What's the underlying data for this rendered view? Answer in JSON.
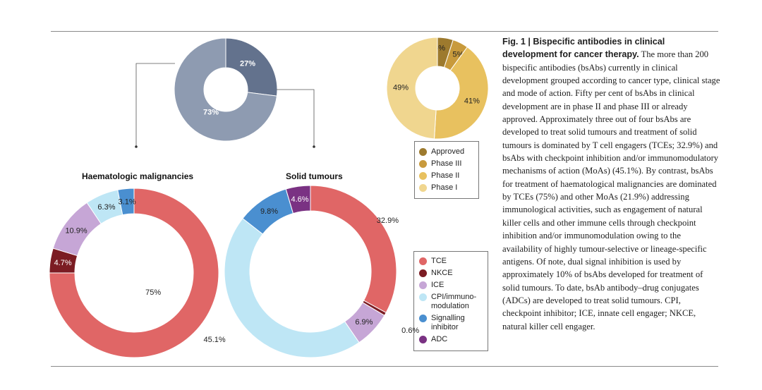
{
  "chart_data": [
    {
      "type": "pie",
      "variant": "donut",
      "categories": [
        "Haematologic malignancies",
        "Solid tumours"
      ],
      "values": [
        27,
        73
      ],
      "labels": [
        "27%",
        "73%"
      ],
      "colors": [
        "#63728d",
        "#8e9bb1"
      ]
    },
    {
      "type": "pie",
      "variant": "donut",
      "categories": [
        "Approved",
        "Phase III",
        "Phase II",
        "Phase I"
      ],
      "values": [
        5,
        5,
        41,
        49
      ],
      "labels": [
        "5%",
        "5%",
        "41%",
        "49%"
      ],
      "colors": [
        "#9d7a2e",
        "#c89a3c",
        "#e8c15f",
        "#f0d68f"
      ],
      "legend": {
        "title": "",
        "items": [
          "Approved",
          "Phase III",
          "Phase II",
          "Phase I"
        ],
        "placement": "bottom"
      }
    },
    {
      "type": "pie",
      "variant": "donut",
      "title": "Haematologic malignancies",
      "categories": [
        "TCE",
        "NKCE",
        "ICE",
        "CPI/immuno-modulation",
        "Signalling inhibitor"
      ],
      "values": [
        75,
        4.7,
        10.9,
        6.3,
        3.1
      ],
      "labels": [
        "75%",
        "4.7%",
        "10.9%",
        "6.3%",
        "3.1%"
      ],
      "colors": [
        "#e06666",
        "#7b1c23",
        "#c6a6d6",
        "#bee6f5",
        "#4a8fd0"
      ]
    },
    {
      "type": "pie",
      "variant": "donut",
      "title": "Solid tumours",
      "categories": [
        "TCE",
        "NKCE",
        "ICE",
        "CPI/immuno-modulation",
        "Signalling inhibitor",
        "ADC"
      ],
      "values": [
        32.9,
        0.6,
        6.9,
        45.1,
        9.8,
        4.6
      ],
      "labels": [
        "32.9%",
        "0.6%",
        "6.9%",
        "45.1%",
        "9.8%",
        "4.6%"
      ],
      "colors": [
        "#e06666",
        "#7b1c23",
        "#c6a6d6",
        "#bee6f5",
        "#4a8fd0",
        "#7a3283"
      ],
      "legend": {
        "items": [
          "TCE",
          "NKCE",
          "ICE",
          "CPI/immuno-modulation",
          "Signalling inhibitor",
          "ADC"
        ],
        "placement": "right"
      }
    }
  ],
  "titles": {
    "haem": "Haematologic malignancies",
    "solid": "Solid tumours"
  },
  "phase_legend": [
    "Approved",
    "Phase III",
    "Phase II",
    "Phase I"
  ],
  "moa_legend": [
    "TCE",
    "NKCE",
    "ICE",
    "CPI/immuno-\nmodulation",
    "Signalling\ninhibitor",
    "ADC"
  ],
  "caption": {
    "bold": "Fig. 1 | Bispecific antibodies in clinical development for cancer therapy.",
    "text": " The more than 200 bispecific antibodies (bsAbs) currently in clinical development grouped according to cancer type, clinical stage and mode of action. Fifty per cent of bsAbs in clinical development are in phase II and phase III or already approved. Approximately three out of four bsAbs are developed to treat solid tumours and treatment of solid tumours is dominated by T cell engagers (TCEs; 32.9%) and bsAbs with checkpoint inhibition and/or immunomodulatory mechanisms of action (MoAs) (45.1%). By contrast, bsAbs for treatment of haematological malignancies are dominated by TCEs (75%) and other MoAs (21.9%) addressing immunological activities, such as engagement of natural killer cells and other immune cells through checkpoint inhibition and/or immunomodulation owing to the availability of highly tumour-selective or lineage-specific antigens. Of note, dual signal inhibition is used by approximately 10% of bsAbs developed for treatment of solid tumours. To date, bsAb antibody–drug conjugates (ADCs) are developed to treat solid tumours. CPI, checkpoint inhibitor; ICE, innate cell engager; NKCE, natural killer cell engager."
  }
}
